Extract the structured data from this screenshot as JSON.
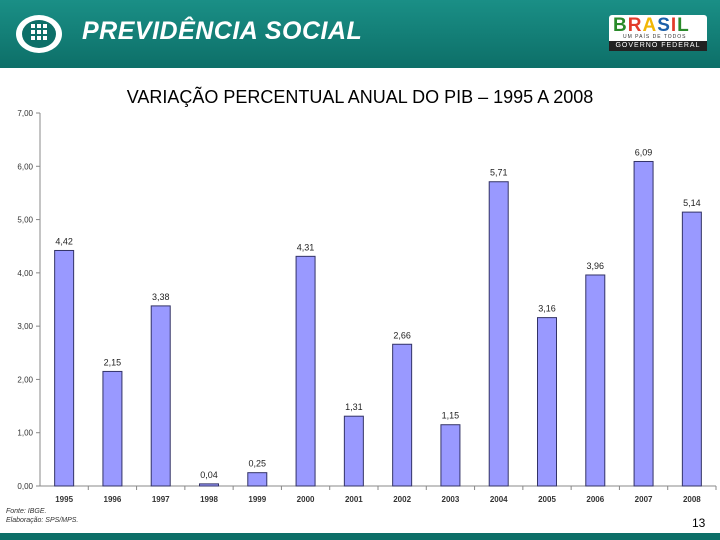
{
  "header": {
    "title": "PREVIDÊNCIA SOCIAL",
    "brasil_word": "BRASIL",
    "brasil_tagline": "UM PAÍS DE TODOS",
    "brasil_government": "GOVERNO FEDERAL",
    "colors": {
      "band": "#0d6f68",
      "band_light": "#1a8f86"
    }
  },
  "chart_data": {
    "type": "bar",
    "title": "VARIAÇÃO PERCENTUAL ANUAL DO PIB – 1995 A 2008",
    "categories": [
      "1995",
      "1996",
      "1997",
      "1998",
      "1999",
      "2000",
      "2001",
      "2002",
      "2003",
      "2004",
      "2005",
      "2006",
      "2007",
      "2008"
    ],
    "values": [
      4.42,
      2.15,
      3.38,
      0.04,
      0.25,
      4.31,
      1.31,
      2.66,
      1.15,
      5.71,
      3.16,
      3.96,
      6.09,
      5.14
    ],
    "value_labels": [
      "4,42",
      "2,15",
      "3,38",
      "0,04",
      "0,25",
      "4,31",
      "1,31",
      "2,66",
      "1,15",
      "5,71",
      "3,16",
      "3,96",
      "6,09",
      "5,14"
    ],
    "yticks": [
      "0,00",
      "1,00",
      "2,00",
      "3,00",
      "4,00",
      "5,00",
      "6,00",
      "7,00"
    ],
    "ylim": [
      0,
      7
    ],
    "xlabel": "",
    "ylabel": "",
    "grid": false,
    "bar_color": "#9999ff",
    "bar_edge_color": "#333366"
  },
  "footer": {
    "source": "Fonte: IBGE.",
    "prepared_by": "Elaboração: SPS/MPS.",
    "page_number": "13"
  }
}
